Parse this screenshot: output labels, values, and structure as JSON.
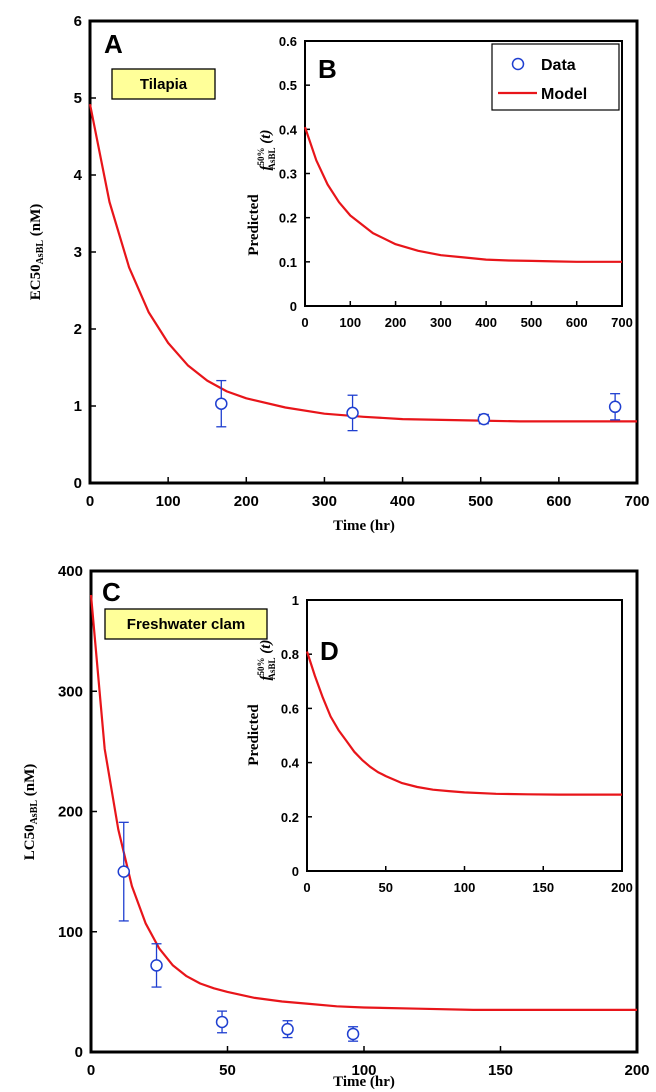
{
  "colors": {
    "model": "#e8151a",
    "data": "#1f3fd0",
    "tag_bg": "#ffff99"
  },
  "chart_data": [
    {
      "panel": "A",
      "type": "line",
      "tag": "Tilapia",
      "xlabel": "Time (hr)",
      "ylabel_main": "EC50",
      "ylabel_sub": "AsBL",
      "ylabel_unit": " (nM)",
      "xlim": [
        0,
        700
      ],
      "ylim": [
        0,
        6
      ],
      "xticks": [
        "0",
        "100",
        "200",
        "300",
        "400",
        "500",
        "600",
        "700"
      ],
      "yticks": [
        "0",
        "1",
        "2",
        "3",
        "4",
        "5",
        "6"
      ],
      "series": [
        {
          "name": "Model",
          "style": "line",
          "x": [
            0,
            25,
            50,
            75,
            100,
            125,
            150,
            175,
            200,
            250,
            300,
            350,
            400,
            450,
            500,
            550,
            600,
            650,
            700
          ],
          "y": [
            4.92,
            3.65,
            2.8,
            2.22,
            1.82,
            1.53,
            1.33,
            1.19,
            1.1,
            0.98,
            0.9,
            0.86,
            0.83,
            0.82,
            0.81,
            0.8,
            0.8,
            0.8,
            0.8
          ]
        },
        {
          "name": "Data",
          "style": "points",
          "x": [
            168,
            336,
            504,
            672
          ],
          "y": [
            1.03,
            0.91,
            0.83,
            0.99
          ],
          "err": [
            0.3,
            0.23,
            0.06,
            0.17
          ]
        }
      ]
    },
    {
      "panel": "B",
      "type": "line",
      "ylabel_pred": "Predicted",
      "ylabel_f": "f",
      "ylabel_sup": "50%",
      "ylabel_sub": "AsBL",
      "ylabel_arg": " (t)",
      "xlim": [
        0,
        700
      ],
      "ylim": [
        0,
        0.6
      ],
      "xticks": [
        "0",
        "100",
        "200",
        "300",
        "400",
        "500",
        "600",
        "700"
      ],
      "yticks": [
        "0",
        "0.1",
        "0.2",
        "0.3",
        "0.4",
        "0.5",
        "0.6"
      ],
      "legend": [
        "Data",
        "Model"
      ],
      "legend_position": "top-right",
      "series": [
        {
          "name": "Model",
          "style": "line",
          "x": [
            0,
            25,
            50,
            75,
            100,
            150,
            200,
            250,
            300,
            350,
            400,
            450,
            500,
            550,
            600,
            650,
            700
          ],
          "y": [
            0.405,
            0.33,
            0.275,
            0.235,
            0.205,
            0.165,
            0.14,
            0.125,
            0.115,
            0.11,
            0.105,
            0.103,
            0.102,
            0.101,
            0.1,
            0.1,
            0.1
          ]
        }
      ]
    },
    {
      "panel": "C",
      "type": "line",
      "tag": "Freshwater clam",
      "xlabel": "Time (hr)",
      "ylabel_main": "LC50",
      "ylabel_sub": "AsBL",
      "ylabel_unit": " (nM)",
      "xlim": [
        0,
        200
      ],
      "ylim": [
        0,
        400
      ],
      "xticks": [
        "0",
        "50",
        "100",
        "150",
        "200"
      ],
      "yticks": [
        "0",
        "100",
        "200",
        "300",
        "400"
      ],
      "series": [
        {
          "name": "Model",
          "style": "line",
          "x": [
            0,
            5,
            10,
            15,
            20,
            25,
            30,
            35,
            40,
            45,
            50,
            60,
            70,
            80,
            90,
            100,
            120,
            140,
            160,
            180,
            200
          ],
          "y": [
            380,
            252,
            185,
            138,
            107,
            86,
            72,
            63,
            57,
            53,
            50,
            45,
            42,
            40,
            38,
            37,
            36,
            35,
            35,
            35,
            35
          ]
        },
        {
          "name": "Data",
          "style": "points",
          "x": [
            12,
            24,
            48,
            72,
            96
          ],
          "y": [
            150,
            72,
            25,
            19,
            15
          ],
          "err": [
            41,
            18,
            9,
            7,
            6
          ]
        }
      ]
    },
    {
      "panel": "D",
      "type": "line",
      "ylabel_pred": "Predicted",
      "ylabel_f": "f",
      "ylabel_sup": "50%",
      "ylabel_sub": "AsBL",
      "ylabel_arg": " (t)",
      "xlim": [
        0,
        200
      ],
      "ylim": [
        0,
        1
      ],
      "xticks": [
        "0",
        "50",
        "100",
        "150",
        "200"
      ],
      "yticks": [
        "0",
        "0.2",
        "0.4",
        "0.6",
        "0.8",
        "1"
      ],
      "series": [
        {
          "name": "Model",
          "style": "line",
          "x": [
            0,
            5,
            10,
            15,
            20,
            25,
            30,
            35,
            40,
            45,
            50,
            60,
            70,
            80,
            90,
            100,
            120,
            140,
            160,
            180,
            200
          ],
          "y": [
            0.81,
            0.72,
            0.64,
            0.57,
            0.52,
            0.48,
            0.44,
            0.41,
            0.385,
            0.365,
            0.35,
            0.325,
            0.31,
            0.3,
            0.295,
            0.29,
            0.285,
            0.283,
            0.282,
            0.282,
            0.282
          ]
        }
      ]
    }
  ]
}
